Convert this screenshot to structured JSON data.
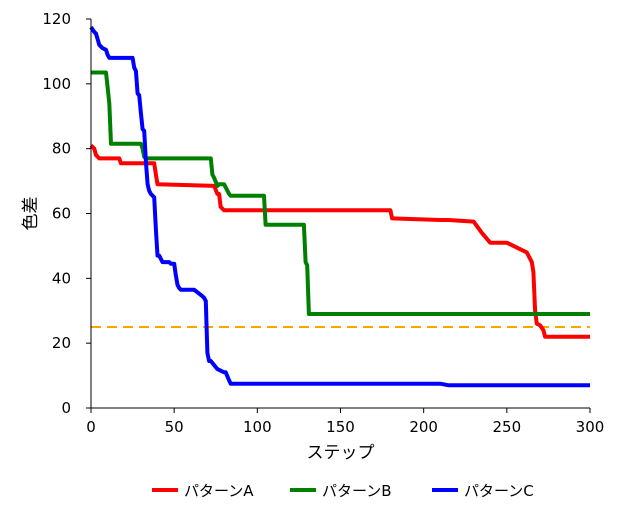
{
  "chart_data": {
    "type": "line",
    "xlabel": "ステップ",
    "ylabel": "色差",
    "xlim": [
      0,
      300
    ],
    "ylim": [
      0,
      120
    ],
    "x_ticks": [
      0,
      50,
      100,
      150,
      200,
      250,
      300
    ],
    "y_ticks": [
      0,
      20,
      40,
      60,
      80,
      100,
      120
    ],
    "grid": false,
    "legend_position": "bottom",
    "series": [
      {
        "name": "パターンA",
        "color": "#ff0000",
        "x": [
          0,
          2,
          3,
          5,
          17,
          18,
          38,
          39,
          40,
          74,
          76,
          77,
          78,
          80,
          100,
          180,
          181,
          210,
          215,
          230,
          235,
          240,
          250,
          262,
          265,
          266,
          267,
          268,
          270,
          272,
          273,
          275,
          300
        ],
        "y": [
          81,
          80,
          78,
          77,
          77,
          75.5,
          75.5,
          72,
          69,
          68.5,
          66,
          66,
          62,
          61,
          61,
          61,
          58.5,
          58,
          58,
          57.5,
          54,
          51,
          51,
          48,
          45,
          42,
          30,
          26,
          25.5,
          24,
          22,
          22,
          22
        ]
      },
      {
        "name": "パターンB",
        "color": "#008000",
        "x": [
          0,
          9,
          10,
          11,
          12,
          30,
          31,
          32,
          33,
          72,
          73,
          74,
          76,
          77,
          80,
          83,
          84,
          104,
          105,
          128,
          129,
          130,
          131,
          300
        ],
        "y": [
          103.5,
          103.5,
          99,
          94,
          81.5,
          81.5,
          80,
          77.5,
          77,
          77,
          72,
          71,
          68.5,
          69,
          69,
          66,
          65.5,
          65.5,
          56.5,
          56.5,
          45,
          44,
          29,
          29
        ]
      },
      {
        "name": "パターンC",
        "color": "#0000ff",
        "x": [
          0,
          2,
          3,
          5,
          7,
          9,
          10,
          11,
          13,
          25,
          26,
          27,
          28,
          29,
          30,
          31,
          32,
          33,
          34,
          35,
          36,
          38,
          39,
          40,
          41,
          42,
          43,
          45,
          47,
          48,
          50,
          51,
          52,
          53,
          54,
          62,
          67,
          68,
          69,
          70,
          71,
          72,
          76,
          78,
          80,
          81,
          83,
          84,
          85,
          210,
          215,
          300
        ],
        "y": [
          117.5,
          116,
          115.5,
          112,
          111,
          110.5,
          109,
          108,
          108,
          108,
          105,
          104,
          97,
          96.5,
          91,
          86,
          85.5,
          76,
          69,
          67,
          66,
          65,
          55,
          47,
          47,
          46,
          45,
          45,
          45,
          44.5,
          44.5,
          41,
          38,
          37,
          36.5,
          36.5,
          34.5,
          34,
          33,
          17,
          14.5,
          14.5,
          12,
          11.5,
          11,
          11,
          8.5,
          7.5,
          7.5,
          7.5,
          7,
          7
        ]
      }
    ],
    "reference_line": {
      "y": 25,
      "color": "#ffa500",
      "style": "dashed"
    }
  }
}
